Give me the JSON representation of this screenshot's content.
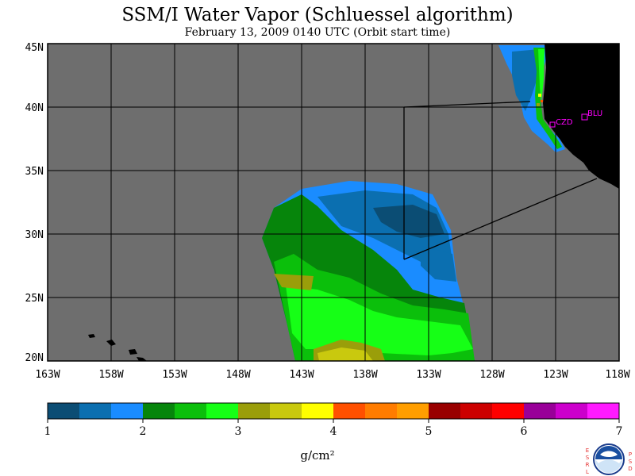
{
  "title": "SSM/I Water Vapor (Schluessel algorithm)",
  "subtitle": "February 13, 2009  0140 UTC  (Orbit start time)",
  "map": {
    "lat_range": [
      20,
      45
    ],
    "lon_range": [
      -163,
      -118
    ],
    "lat_ticks": [
      {
        "value": 45,
        "label": "45N"
      },
      {
        "value": 40,
        "label": "40N"
      },
      {
        "value": 35,
        "label": "35N"
      },
      {
        "value": 30,
        "label": "30N"
      },
      {
        "value": 25,
        "label": "25N"
      },
      {
        "value": 20,
        "label": "20N"
      }
    ],
    "lon_ticks": [
      {
        "value": -163,
        "label": "163W"
      },
      {
        "value": -158,
        "label": "158W"
      },
      {
        "value": -153,
        "label": "153W"
      },
      {
        "value": -148,
        "label": "148W"
      },
      {
        "value": -143,
        "label": "143W"
      },
      {
        "value": -138,
        "label": "138W"
      },
      {
        "value": -133,
        "label": "133W"
      },
      {
        "value": -128,
        "label": "128W"
      },
      {
        "value": -123,
        "label": "123W"
      },
      {
        "value": -118,
        "label": "118W"
      }
    ],
    "stations": [
      {
        "name": "CZD",
        "lat": 38.6,
        "lon": -123.2
      },
      {
        "name": "BLU",
        "lat": 39.3,
        "lon": -120.7
      }
    ]
  },
  "colorbar": {
    "colors": [
      "#0b4d74",
      "#0b6fb0",
      "#1a8cff",
      "#06850b",
      "#0bbf0b",
      "#16ff16",
      "#9a9e0a",
      "#c9c90e",
      "#ffff00",
      "#ff5000",
      "#ff7c00",
      "#ff9e00",
      "#990000",
      "#cc0000",
      "#ff0000",
      "#990099",
      "#cc00cc",
      "#ff1aff"
    ],
    "tick_labels": [
      "1",
      "2",
      "3",
      "4",
      "5",
      "6",
      "7"
    ],
    "unit": "g/cm²"
  },
  "colors": {
    "no_data": "#6e6e6e",
    "land": "#000000",
    "grid": "#000000",
    "station": "#ff00ff"
  },
  "credit": {
    "left_letters": [
      "E",
      "S",
      "R",
      "L"
    ],
    "right_letters": [
      "P",
      "S",
      "D"
    ],
    "logo": "NOAA"
  }
}
